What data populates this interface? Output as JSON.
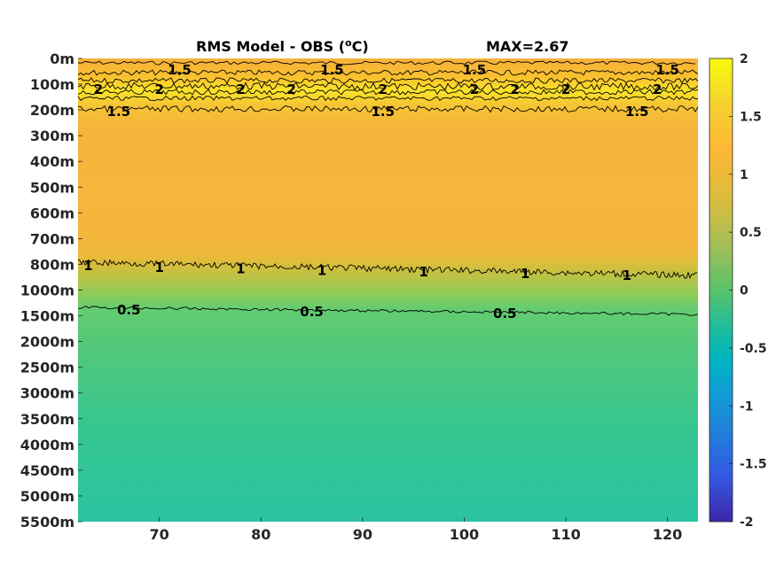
{
  "chart_data": {
    "type": "heatmap",
    "title": "RMS Model - OBS (",
    "title_unit_sup": "o",
    "title_unit_end": "C)",
    "max_label": "MAX=2.67",
    "xlabel": "",
    "ylabel": "",
    "xlim": [
      62,
      123
    ],
    "x_ticks": [
      70,
      80,
      90,
      100,
      110,
      120
    ],
    "y_ticks": [
      "0m",
      "100m",
      "200m",
      "300m",
      "400m",
      "500m",
      "600m",
      "700m",
      "800m",
      "1000m",
      "1500m",
      "2000m",
      "2500m",
      "3000m",
      "3500m",
      "4000m",
      "4500m",
      "5000m",
      "5500m"
    ],
    "color_limits": [
      -2,
      2
    ],
    "colorbar_ticks": [
      "2",
      "1.5",
      "1",
      "0.5",
      "0",
      "-0.5",
      "-1",
      "-1.5",
      "-2"
    ],
    "colormap": "parula",
    "depth_profile": [
      {
        "depth": "0m",
        "value": 1.6
      },
      {
        "depth": "100m",
        "value": 2.05
      },
      {
        "depth": "200m",
        "value": 1.5
      },
      {
        "depth": "300m",
        "value": 1.38
      },
      {
        "depth": "400m",
        "value": 1.4
      },
      {
        "depth": "500m",
        "value": 1.4
      },
      {
        "depth": "600m",
        "value": 1.38
      },
      {
        "depth": "700m",
        "value": 1.3
      },
      {
        "depth": "800m",
        "value": 1.05
      },
      {
        "depth": "1000m",
        "value": 0.82
      },
      {
        "depth": "1500m",
        "value": 0.5
      },
      {
        "depth": "2000m",
        "value": 0.5
      },
      {
        "depth": "2500m",
        "value": 0.47
      },
      {
        "depth": "3000m",
        "value": 0.44
      },
      {
        "depth": "3500m",
        "value": 0.42
      },
      {
        "depth": "4000m",
        "value": 0.4
      },
      {
        "depth": "4500m",
        "value": 0.38
      },
      {
        "depth": "5000m",
        "value": 0.37
      },
      {
        "depth": "5500m",
        "value": 0.36
      }
    ],
    "contours": [
      {
        "level": "2",
        "labels_x": [
          64,
          70,
          78,
          83,
          92,
          101,
          105,
          110,
          119
        ]
      },
      {
        "level": "1.5",
        "labels_x": [
          66,
          72,
          87,
          92,
          101,
          117,
          120
        ]
      },
      {
        "level": "1",
        "labels_x": [
          63,
          70,
          78,
          86,
          96,
          106,
          116
        ]
      },
      {
        "level": "0.5",
        "labels_x": [
          67,
          85,
          104
        ]
      }
    ],
    "grid": false,
    "legend": "colorbar-right"
  }
}
